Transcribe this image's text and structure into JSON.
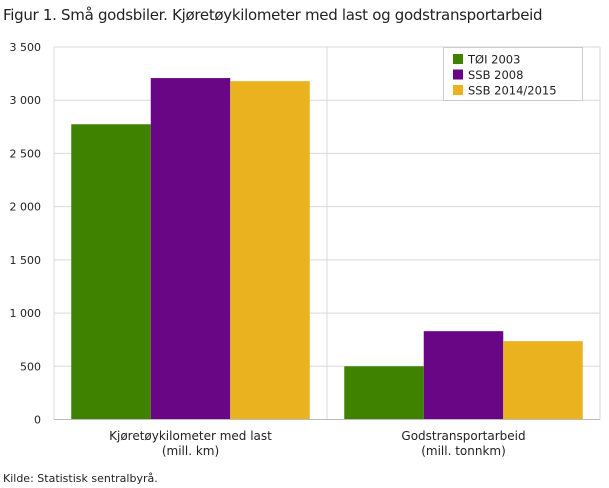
{
  "chart_data": {
    "type": "bar",
    "title": "Figur 1. Små godsbiler. Kjøretøykilometer med last og godstransportarbeid",
    "categories": [
      [
        "Kjøretøykilometer med last",
        "(mill. km)"
      ],
      [
        "Godstransportarbeid",
        "(mill. tonnkm)"
      ]
    ],
    "series": [
      {
        "name": "TØI 2003",
        "color": "#3e8200",
        "values": [
          2774,
          500
        ]
      },
      {
        "name": "SSB 2008",
        "color": "#690685",
        "values": [
          3208,
          830
        ]
      },
      {
        "name": "SSB 2014/2015",
        "color": "#ebb220",
        "values": [
          3179,
          736
        ]
      }
    ],
    "ylim": [
      0,
      3500
    ],
    "yticks": [
      0,
      500,
      1000,
      1500,
      2000,
      2500,
      3000,
      3500
    ],
    "ytick_labels": [
      "0",
      "500",
      "1 000",
      "1 500",
      "2 000",
      "2 500",
      "3 000",
      "3 500"
    ],
    "grid": true,
    "legend_position": "top-right",
    "source": "Kilde: Statistisk sentralbyrå."
  }
}
